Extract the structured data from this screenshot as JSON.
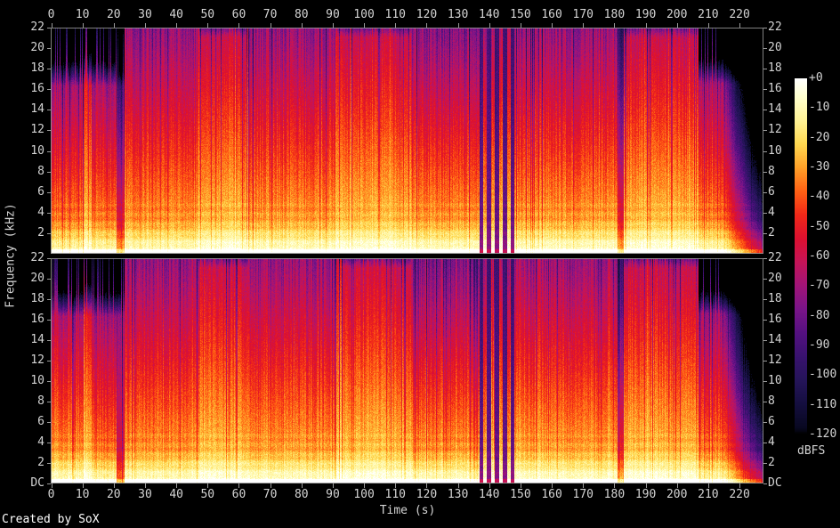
{
  "chart_data": {
    "type": "heatmap",
    "subtype": "spectrogram",
    "tool": "SoX",
    "channels": [
      "left",
      "right"
    ],
    "xlabel": "Time (s)",
    "ylabel": "Frequency (kHz)",
    "colorbar_label": "dBFS",
    "footer": "Created by SoX",
    "x_range": [
      0,
      227.8
    ],
    "y_range_khz": [
      0,
      22
    ],
    "z_range_dbfs": [
      -120,
      0
    ],
    "x_ticks": [
      0,
      10,
      20,
      30,
      40,
      50,
      60,
      70,
      80,
      90,
      100,
      110,
      120,
      130,
      140,
      150,
      160,
      170,
      180,
      190,
      200,
      210,
      220
    ],
    "y_ticks_khz": [
      22,
      20,
      18,
      16,
      14,
      12,
      10,
      8,
      6,
      4,
      2
    ],
    "y_tick_dc_label": "DC",
    "colorbar_ticks": [
      "+0",
      "-10",
      "-20",
      "-30",
      "-40",
      "-50",
      "-60",
      "-70",
      "-80",
      "-90",
      "-100",
      "-110",
      "-120"
    ],
    "colormap_stops": [
      [
        0,
        "#ffffff"
      ],
      [
        -6,
        "#ffffcf"
      ],
      [
        -14,
        "#fff296"
      ],
      [
        -22,
        "#ffd850"
      ],
      [
        -30,
        "#ffa028"
      ],
      [
        -38,
        "#ff6014"
      ],
      [
        -46,
        "#f02818"
      ],
      [
        -54,
        "#dc1030"
      ],
      [
        -62,
        "#c41458"
      ],
      [
        -70,
        "#a01478"
      ],
      [
        -78,
        "#781488"
      ],
      [
        -86,
        "#541080"
      ],
      [
        -94,
        "#38126e"
      ],
      [
        -102,
        "#241458"
      ],
      [
        -110,
        "#140e3e"
      ],
      [
        -118,
        "#080820"
      ],
      [
        -120,
        "#000000"
      ]
    ],
    "segments": [
      {
        "t0": 0,
        "t1": 10.5,
        "base": -27,
        "roll": 2.7,
        "fcut": 16.3,
        "stripe": 1.35
      },
      {
        "t0": 10.5,
        "t1": 13,
        "base": -20,
        "roll": 2.1,
        "fcut": 16.3,
        "stripe": 1.0
      },
      {
        "t0": 13,
        "t1": 21,
        "base": -27,
        "roll": 2.7,
        "fcut": 16.3,
        "stripe": 1.45
      },
      {
        "t0": 21,
        "t1": 23.5,
        "base": -44,
        "roll": 2.8,
        "fcut": 16.3,
        "stripe": 1.6
      },
      {
        "t0": 23.5,
        "t1": 47,
        "base": -24,
        "roll": 2.3,
        "fcut": 22,
        "stripe": 1.15
      },
      {
        "t0": 47,
        "t1": 63,
        "base": -19,
        "roll": 2.0,
        "fcut": 21,
        "stripe": 0.9
      },
      {
        "t0": 63,
        "t1": 91,
        "base": -23,
        "roll": 2.35,
        "fcut": 22,
        "stripe": 1.15
      },
      {
        "t0": 91,
        "t1": 115,
        "base": -19,
        "roll": 2.0,
        "fcut": 21,
        "stripe": 0.9
      },
      {
        "t0": 115,
        "t1": 137,
        "base": -23,
        "roll": 2.5,
        "fcut": 22,
        "stripe": 1.15
      },
      {
        "t0": 137,
        "t1": 148,
        "base": -21,
        "roll": 2.2,
        "fcut": 22,
        "stripe": 1.0,
        "gap": true
      },
      {
        "t0": 148,
        "t1": 181,
        "base": -22,
        "roll": 2.3,
        "fcut": 22,
        "stripe": 1.15
      },
      {
        "t0": 181,
        "t1": 183,
        "base": -44,
        "roll": 2.6,
        "fcut": 22,
        "stripe": 1.4
      },
      {
        "t0": 183,
        "t1": 207,
        "base": -19,
        "roll": 2.05,
        "fcut": 21,
        "stripe": 0.95
      },
      {
        "t0": 207,
        "t1": 215,
        "base": -26,
        "roll": 2.7,
        "fcut": 16.5,
        "stripe": 1.2
      },
      {
        "t0": 215,
        "t1": 228,
        "base": -26,
        "roll": 2.8,
        "fcut": 16.5,
        "stripe": 0.8,
        "fade": true
      }
    ]
  }
}
